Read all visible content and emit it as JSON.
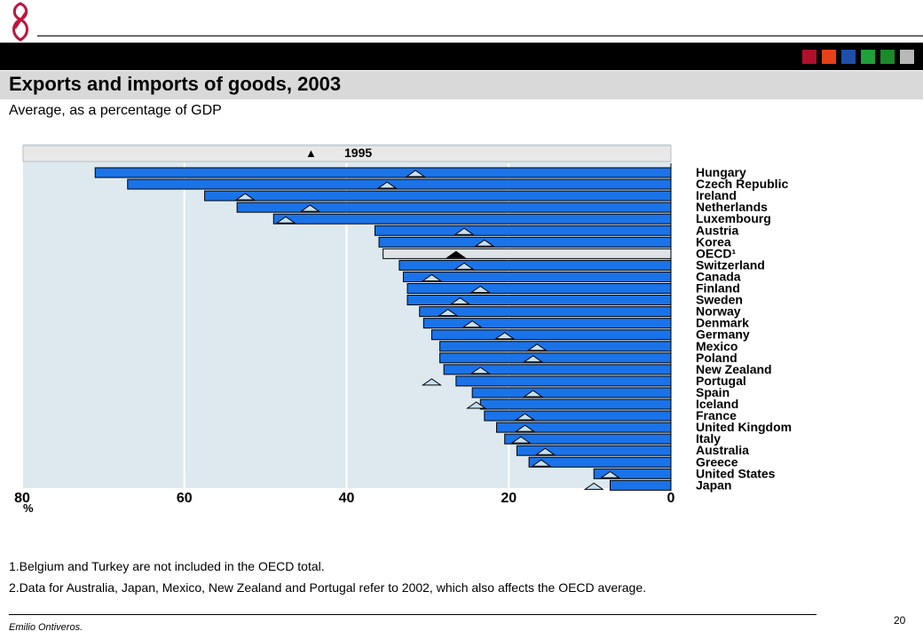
{
  "header": {
    "colors": [
      "#b0102a",
      "#e8401a",
      "#1f4fa8",
      "#1fa03a",
      "#1a8a2a",
      "#b8b8b8"
    ]
  },
  "slide": {
    "title": "Exports and imports of goods, 2003",
    "subtitle": "Average, as a percentage of GDP",
    "notes": [
      "1.Belgium and Turkey are not included in the OECD total.",
      "2.Data for Australia, Japan, Mexico, New Zealand and Portugal refer to 2002, which also affects the OECD average."
    ],
    "author": "Emilio Ontiveros.",
    "page_number": "20"
  },
  "chart_data": {
    "type": "bar",
    "orientation": "horizontal",
    "x_direction": "reversed",
    "legend": {
      "marker": "▲",
      "label": "1995",
      "position": "top"
    },
    "xlim": [
      0,
      80
    ],
    "xticks": [
      "80",
      "60",
      "40",
      "20",
      "0"
    ],
    "xunit": "%",
    "categories": [
      "Hungary",
      "Czech Republic",
      "Ireland",
      "Netherlands",
      "Luxembourg",
      "Austria",
      "Korea",
      "OECD¹",
      "Switzerland",
      "Canada",
      "Finland",
      "Sweden",
      "Norway",
      "Denmark",
      "Germany",
      "Mexico",
      "Poland",
      "New Zealand",
      "Portugal",
      "Spain",
      "Iceland",
      "France",
      "United Kingdom",
      "Italy",
      "Australia",
      "Greece",
      "United States",
      "Japan"
    ],
    "series": [
      {
        "name": "2003",
        "values": [
          71,
          67,
          57.5,
          53.5,
          49,
          36.5,
          36,
          35.5,
          33.5,
          33,
          32.5,
          32.5,
          31,
          30.5,
          29.5,
          28.5,
          28.5,
          28,
          26.5,
          24.5,
          23.5,
          23,
          21.5,
          20.5,
          19,
          17.5,
          9.5,
          7.5
        ]
      },
      {
        "name": "1995",
        "values": [
          31.5,
          35,
          52.5,
          44.5,
          47.5,
          25.5,
          23,
          26.5,
          25.5,
          29.5,
          23.5,
          26,
          27.5,
          24.5,
          20.5,
          16.5,
          17,
          23.5,
          29.5,
          17,
          24,
          18,
          18,
          18.5,
          15.5,
          16,
          7.5,
          9.5
        ]
      }
    ],
    "highlight": "OECD¹",
    "colors": {
      "bar": "#1a73e8",
      "highlight_bar": "#dde3e6",
      "marker": "#c6e0f2",
      "plot_bg": "#dde9ef"
    }
  }
}
